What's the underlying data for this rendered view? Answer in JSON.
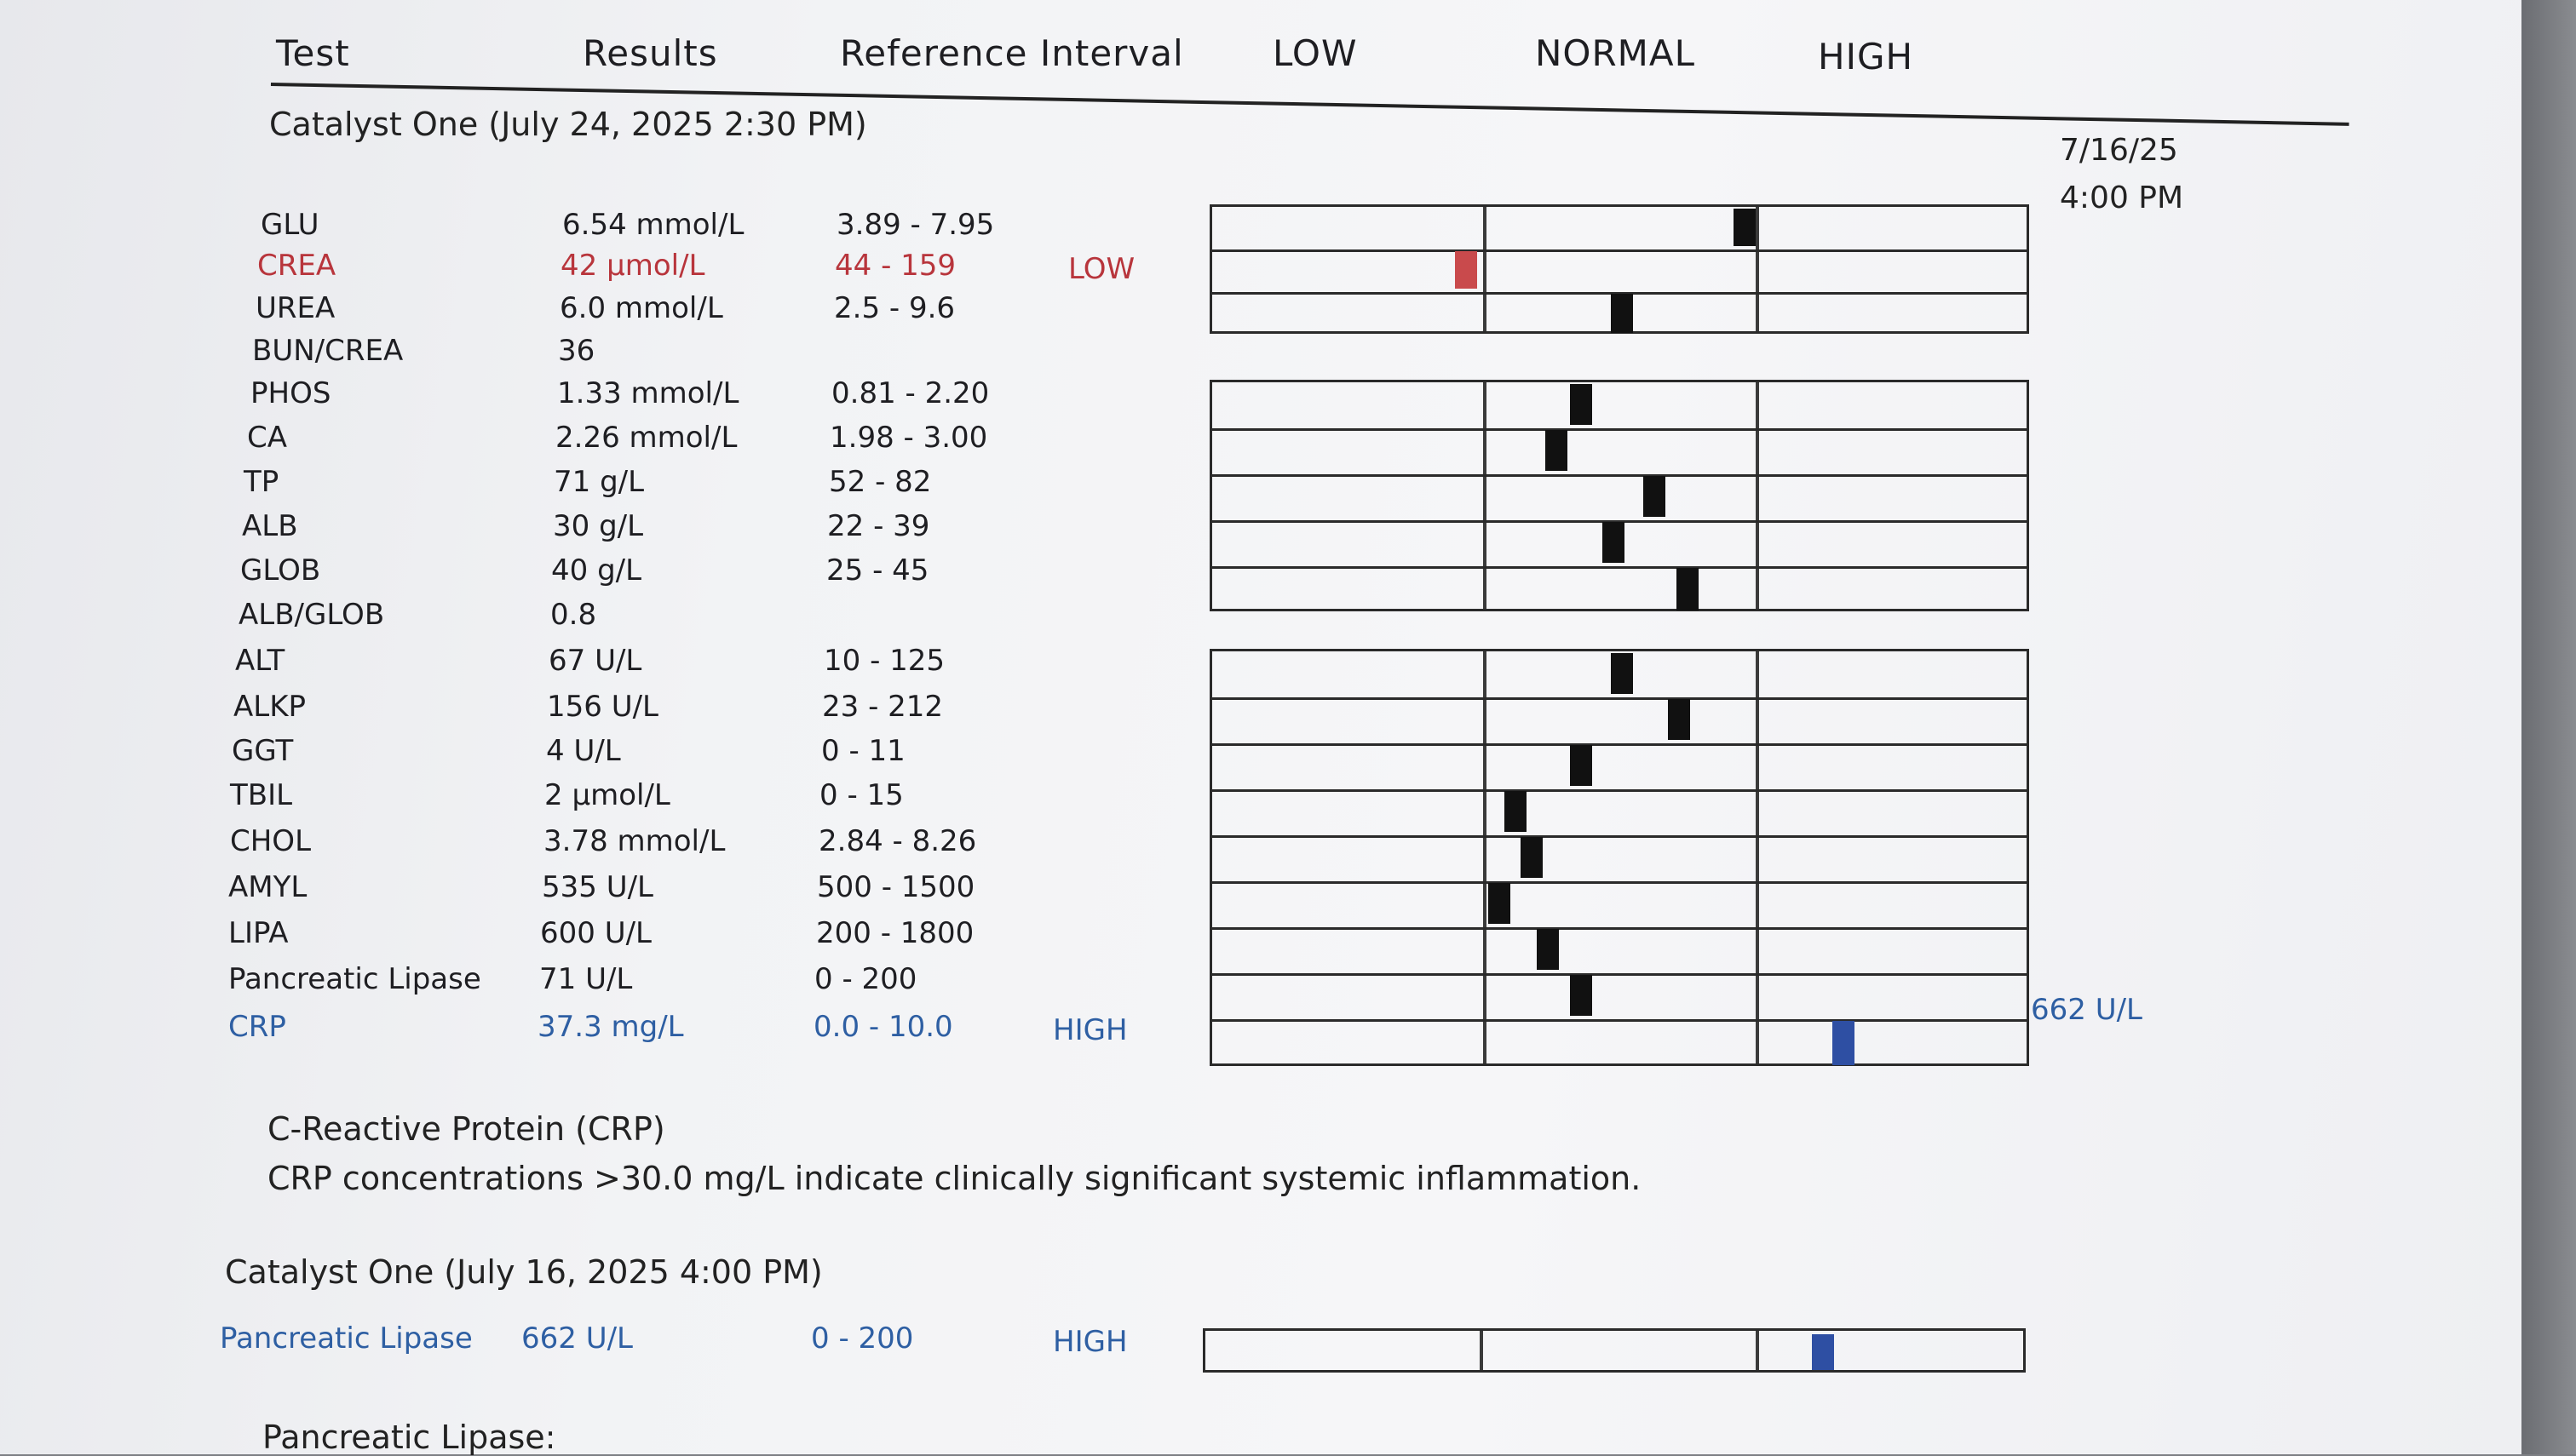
{
  "header": {
    "test": "Test",
    "results": "Results",
    "reference": "Reference Interval",
    "low": "LOW",
    "normal": "NORMAL",
    "high": "HIGH"
  },
  "section1": {
    "title": "Catalyst One (July 24, 2025 2:30 PM)",
    "date_note_line1": "7/16/25",
    "date_note_line2": "4:00 PM"
  },
  "rows": [
    {
      "test": "GLU",
      "result": "6.54 mmol/L",
      "ref": "3.89 - 7.95",
      "flag": "",
      "level": 0.65,
      "status": "normal"
    },
    {
      "test": "CREA",
      "result": "42 µmol/L",
      "ref": "44 - 159",
      "flag": "LOW",
      "level": 0.31,
      "status": "low"
    },
    {
      "test": "UREA",
      "result": "6.0 mmol/L",
      "ref": "2.5 - 9.6",
      "flag": "",
      "level": 0.5,
      "status": "normal"
    },
    {
      "test": "BUN/CREA",
      "result": "36",
      "ref": "",
      "flag": "",
      "level": null,
      "status": "none"
    },
    {
      "test": "PHOS",
      "result": "1.33 mmol/L",
      "ref": "0.81 - 2.20",
      "flag": "",
      "level": 0.45,
      "status": "normal"
    },
    {
      "test": "CA",
      "result": "2.26 mmol/L",
      "ref": "1.98 - 3.00",
      "flag": "",
      "level": 0.42,
      "status": "normal"
    },
    {
      "test": "TP",
      "result": "71 g/L",
      "ref": "52 - 82",
      "flag": "",
      "level": 0.54,
      "status": "normal"
    },
    {
      "test": "ALB",
      "result": "30 g/L",
      "ref": "22 - 39",
      "flag": "",
      "level": 0.49,
      "status": "normal"
    },
    {
      "test": "GLOB",
      "result": "40 g/L",
      "ref": "25 - 45",
      "flag": "",
      "level": 0.58,
      "status": "normal"
    },
    {
      "test": "ALB/GLOB",
      "result": "0.8",
      "ref": "",
      "flag": "",
      "level": null,
      "status": "none"
    },
    {
      "test": "ALT",
      "result": "67 U/L",
      "ref": "10 - 125",
      "flag": "",
      "level": 0.5,
      "status": "normal"
    },
    {
      "test": "ALKP",
      "result": "156 U/L",
      "ref": "23 - 212",
      "flag": "",
      "level": 0.57,
      "status": "normal"
    },
    {
      "test": "GGT",
      "result": "4 U/L",
      "ref": "0 - 11",
      "flag": "",
      "level": 0.45,
      "status": "normal"
    },
    {
      "test": "TBIL",
      "result": "2 µmol/L",
      "ref": "0 - 15",
      "flag": "",
      "level": 0.37,
      "status": "normal"
    },
    {
      "test": "CHOL",
      "result": "3.78 mmol/L",
      "ref": "2.84 - 8.26",
      "flag": "",
      "level": 0.39,
      "status": "normal"
    },
    {
      "test": "AMYL",
      "result": "535 U/L",
      "ref": "500 - 1500",
      "flag": "",
      "level": 0.35,
      "status": "normal"
    },
    {
      "test": "LIPA",
      "result": "600 U/L",
      "ref": "200 - 1800",
      "flag": "",
      "level": 0.41,
      "status": "normal"
    },
    {
      "test": "Pancreatic Lipase",
      "result": "71 U/L",
      "ref": "0 - 200",
      "flag": "",
      "level": 0.45,
      "status": "normal"
    },
    {
      "test": "CRP",
      "result": "37.3 mg/L",
      "ref": "0.0 - 10.0",
      "flag": "HIGH",
      "level": 0.77,
      "status": "high"
    }
  ],
  "band_note": "662 U/L",
  "crp_note": {
    "title": "C-Reactive Protein (CRP)",
    "text": "CRP concentrations >30.0 mg/L indicate clinically significant systemic inflammation."
  },
  "section2": {
    "title": "Catalyst One (July 16, 2025 4:00 PM)",
    "row": {
      "test": "Pancreatic Lipase",
      "result": "662 U/L",
      "ref": "0 - 200",
      "flag": "HIGH",
      "level": 0.75,
      "status": "high"
    }
  },
  "footer_heading": "Pancreatic Lipase:",
  "colors": {
    "low": "#c94a4c",
    "high": "#2e4fa3",
    "normal_marker": "#111111",
    "paper": "#f3f3f5"
  }
}
